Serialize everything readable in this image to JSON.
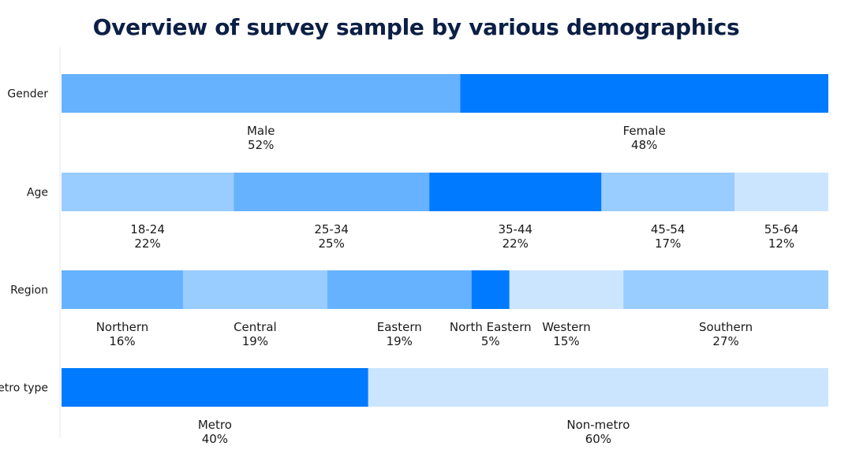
{
  "chart_data": {
    "type": "bar",
    "stacked": true,
    "orientation": "horizontal",
    "title": "Overview of survey sample by various demographics",
    "value_format": "percent",
    "legend": "none",
    "grid": false,
    "rows": [
      {
        "label": "Gender",
        "segments": [
          {
            "name": "Male",
            "value": 52,
            "color": "#66b2ff"
          },
          {
            "name": "Female",
            "value": 48,
            "color": "#007bff"
          }
        ]
      },
      {
        "label": "Age",
        "segments": [
          {
            "name": "18-24",
            "value": 22,
            "color": "#99ccff"
          },
          {
            "name": "25-34",
            "value": 25,
            "color": "#66b2ff"
          },
          {
            "name": "35-44",
            "value": 22,
            "color": "#007bff"
          },
          {
            "name": "45-54",
            "value": 17,
            "color": "#99ccff"
          },
          {
            "name": "55-64",
            "value": 12,
            "color": "#cce5ff"
          }
        ]
      },
      {
        "label": "Region",
        "segments": [
          {
            "name": "Northern",
            "value": 16,
            "color": "#66b2ff"
          },
          {
            "name": "Central",
            "value": 19,
            "color": "#99ccff"
          },
          {
            "name": "Eastern",
            "value": 19,
            "color": "#66b2ff"
          },
          {
            "name": "North Eastern",
            "value": 5,
            "color": "#007bff"
          },
          {
            "name": "Western",
            "value": 15,
            "color": "#cce5ff"
          },
          {
            "name": "Southern",
            "value": 27,
            "color": "#99ccff"
          }
        ]
      },
      {
        "label": "Metro type",
        "segments": [
          {
            "name": "Metro",
            "value": 40,
            "color": "#007bff"
          },
          {
            "name": "Non-metro",
            "value": 60,
            "color": "#cce5ff"
          }
        ]
      }
    ]
  }
}
